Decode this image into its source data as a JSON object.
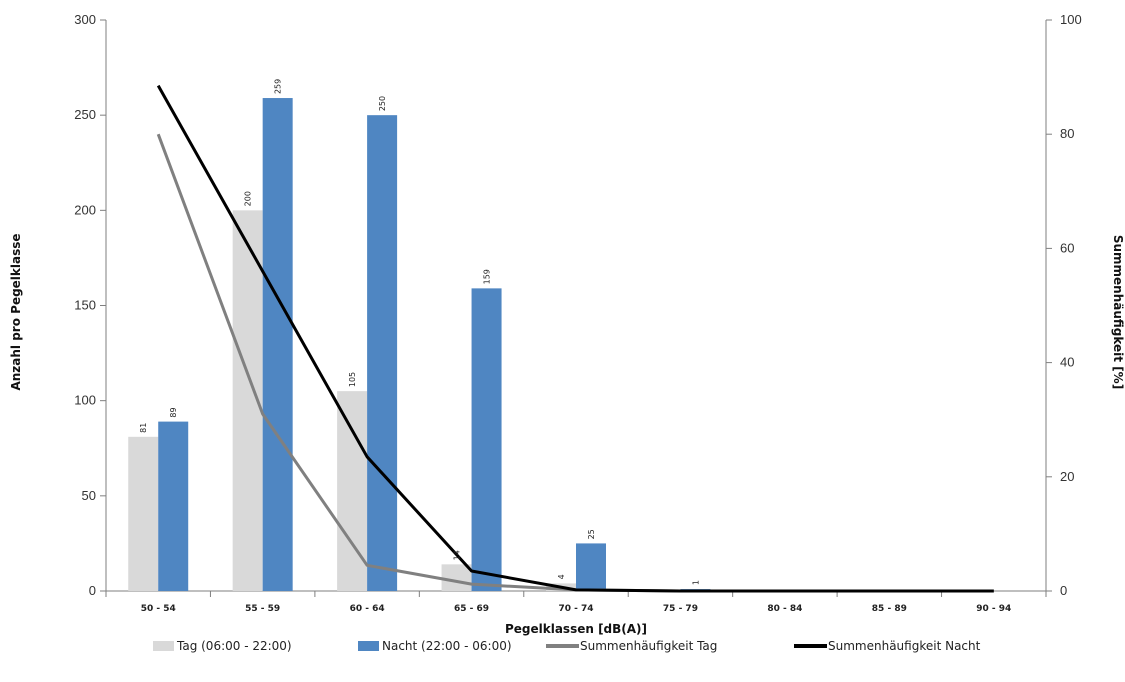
{
  "chart_data": {
    "type": "bar",
    "categories": [
      "50 - 54",
      "55 - 59",
      "60 - 64",
      "65 - 69",
      "70 - 74",
      "75 - 79",
      "80 - 84",
      "85 - 89",
      "90 - 94"
    ],
    "series": [
      {
        "name": "Tag (06:00 - 22:00)",
        "type": "bar",
        "axis": "left",
        "color": "#d9d9d9",
        "values": [
          81,
          200,
          105,
          14,
          4,
          0,
          0,
          0,
          0
        ],
        "labels": [
          "81",
          "200",
          "105",
          "14",
          "4",
          "",
          "",
          "",
          ""
        ]
      },
      {
        "name": "Nacht (22:00 - 06:00)",
        "type": "bar",
        "axis": "left",
        "color": "#4f86c2",
        "values": [
          89,
          259,
          250,
          159,
          25,
          1,
          0,
          0,
          0
        ],
        "labels": [
          "89",
          "259",
          "250",
          "159",
          "25",
          "1",
          "",
          "",
          ""
        ]
      },
      {
        "name": "Summenhäufigkeit Tag",
        "type": "line",
        "axis": "right",
        "color": "#808080",
        "values": [
          80,
          31,
          4.5,
          1.2,
          0.2,
          0,
          0,
          0,
          0
        ]
      },
      {
        "name": "Summenhäufigkeit Nacht",
        "type": "line",
        "axis": "right",
        "color": "#000000",
        "values": [
          88.5,
          56,
          23.5,
          3.5,
          0.2,
          0,
          0,
          0,
          0
        ]
      }
    ],
    "xlabel": "Pegelklassen [dB(A)]",
    "ylabel": "Anzahl pro Pegelklasse",
    "y2label": "Summenhäufigkeit [%]",
    "ylim": [
      0,
      300
    ],
    "yticks": [
      "0",
      "50",
      "100",
      "150",
      "200",
      "250",
      "300"
    ],
    "y2lim": [
      0,
      100
    ],
    "y2ticks": [
      "0",
      "20",
      "40",
      "60",
      "80",
      "100"
    ],
    "grid": false,
    "legend_position": "bottom"
  }
}
